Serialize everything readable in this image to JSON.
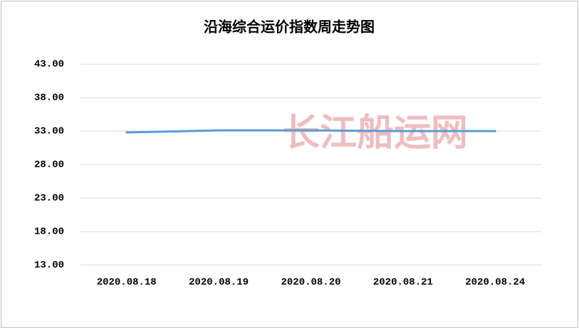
{
  "chart_data": {
    "type": "line",
    "title": "沿海综合运价指数周走势图",
    "watermark": "长江船运网",
    "categories": [
      "2020.08.18",
      "2020.08.19",
      "2020.08.20",
      "2020.08.21",
      "2020.08.24"
    ],
    "values": [
      32.8,
      33.1,
      33.1,
      33.0,
      33.0
    ],
    "color": "#5b9bd5",
    "ylim": [
      13,
      43
    ],
    "yticks": [
      {
        "value": 13,
        "label": "13.00"
      },
      {
        "value": 18,
        "label": "18.00"
      },
      {
        "value": 23,
        "label": "23.00"
      },
      {
        "value": 28,
        "label": "28.00"
      },
      {
        "value": 33,
        "label": "33.00"
      },
      {
        "value": 38,
        "label": "38.00"
      },
      {
        "value": 43,
        "label": "43.00"
      }
    ],
    "grid": true
  }
}
